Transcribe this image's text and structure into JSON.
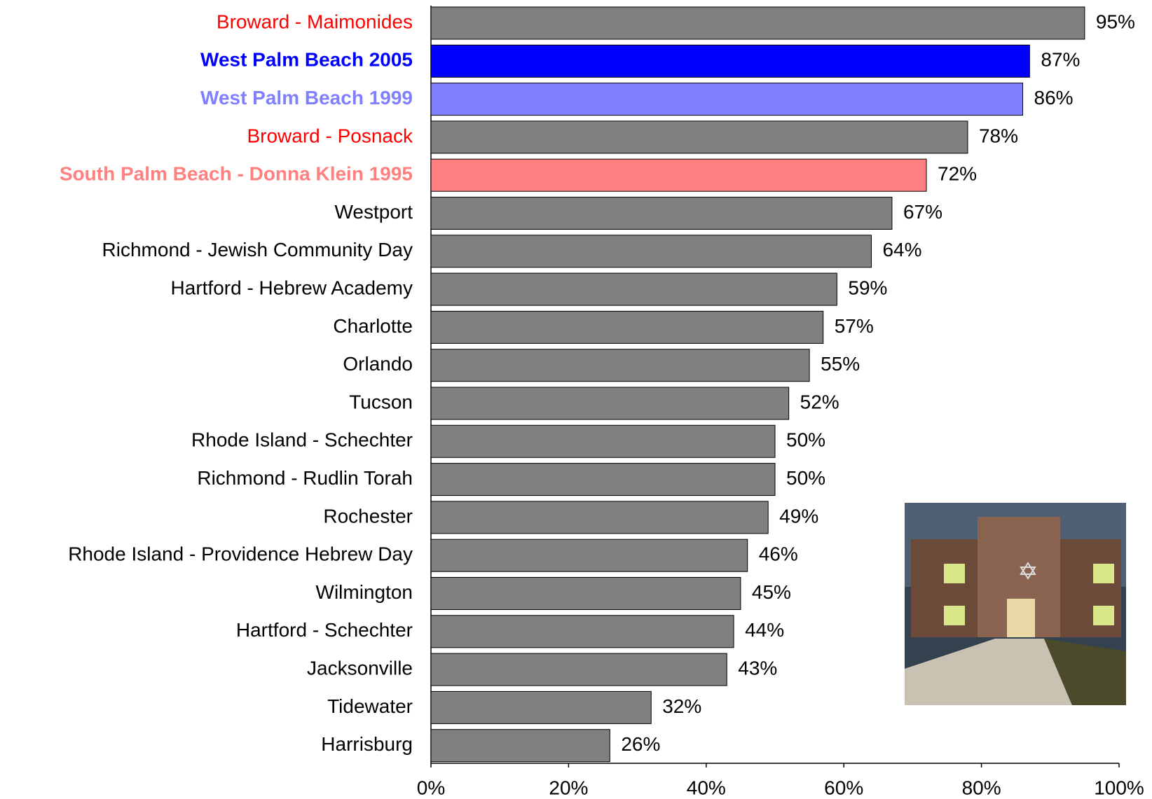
{
  "chart_data": {
    "type": "hbar",
    "categories": [
      "Broward - Maimonides",
      "West Palm Beach 2005",
      "West Palm Beach 1999",
      "Broward - Posnack",
      "South Palm Beach - Donna Klein 1995",
      "Westport",
      "Richmond - Jewish Community Day",
      "Hartford - Hebrew Academy",
      "Charlotte",
      "Orlando",
      "Tucson",
      "Rhode Island - Schechter",
      "Richmond - Rudlin Torah",
      "Rochester",
      "Rhode Island - Providence Hebrew Day",
      "Wilmington",
      "Hartford - Schechter",
      "Jacksonville",
      "Tidewater",
      "Harrisburg"
    ],
    "values": [
      95,
      87,
      86,
      78,
      72,
      67,
      64,
      59,
      57,
      55,
      52,
      50,
      50,
      49,
      46,
      45,
      44,
      43,
      32,
      26
    ],
    "value_labels": [
      "95%",
      "87%",
      "86%",
      "78%",
      "72%",
      "67%",
      "64%",
      "59%",
      "57%",
      "55%",
      "52%",
      "50%",
      "50%",
      "49%",
      "46%",
      "45%",
      "44%",
      "43%",
      "32%",
      "26%"
    ],
    "colors": [
      "#808080",
      "#0000ff",
      "#8080ff",
      "#808080",
      "#ff8080",
      "#808080",
      "#808080",
      "#808080",
      "#808080",
      "#808080",
      "#808080",
      "#808080",
      "#808080",
      "#808080",
      "#808080",
      "#808080",
      "#808080",
      "#808080",
      "#808080",
      "#808080"
    ],
    "label_colors": [
      "#ff0000",
      "#0000ff",
      "#8080ff",
      "#ff0000",
      "#ff8080",
      "#000000",
      "#000000",
      "#000000",
      "#000000",
      "#000000",
      "#000000",
      "#000000",
      "#000000",
      "#000000",
      "#000000",
      "#000000",
      "#000000",
      "#000000",
      "#000000",
      "#000000"
    ],
    "label_bold": [
      false,
      true,
      true,
      false,
      true,
      false,
      false,
      false,
      false,
      false,
      false,
      false,
      false,
      false,
      false,
      false,
      false,
      false,
      false,
      false
    ],
    "xlim": [
      0,
      100
    ],
    "xticks": [
      {
        "value": 0,
        "label": "0%"
      },
      {
        "value": 20,
        "label": "20%"
      },
      {
        "value": 40,
        "label": "40%"
      },
      {
        "value": 60,
        "label": "60%"
      },
      {
        "value": 80,
        "label": "80%"
      },
      {
        "value": 100,
        "label": "100%"
      }
    ]
  }
}
